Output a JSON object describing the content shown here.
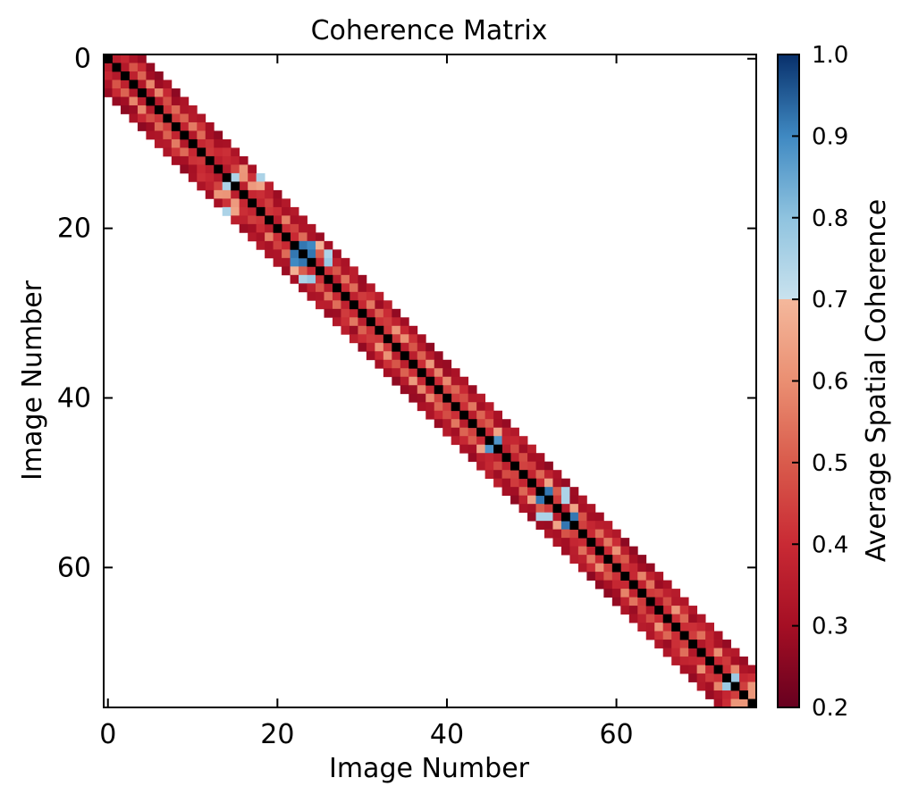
{
  "chart_data": {
    "type": "heatmap",
    "title": "Coherence Matrix",
    "xlabel": "Image Number",
    "ylabel": "Image Number",
    "matrix_size": 77,
    "xlim": [
      -0.5,
      76.5
    ],
    "ylim": [
      76.5,
      -0.5
    ],
    "x_ticks": [
      0,
      20,
      40,
      60
    ],
    "y_ticks": [
      0,
      20,
      40,
      60
    ],
    "diagonal_value": 1.0,
    "diagonal_color": "#000000",
    "band_offsets": {
      "4": 0.42,
      "3": 0.42,
      "2": 0.35,
      "1": 0.35
    },
    "default_values_by_offset": {
      "1": 0.35,
      "2": 0.48,
      "3": 0.32,
      "4": 0.28
    },
    "highlight_pairs": [
      {
        "i": 14,
        "j": 15,
        "v": 0.75
      },
      {
        "i": 14,
        "j": 18,
        "v": 0.75
      },
      {
        "i": 15,
        "j": 18,
        "v": 0.65
      },
      {
        "i": 13,
        "j": 16,
        "v": 0.62
      },
      {
        "i": 22,
        "j": 23,
        "v": 0.92
      },
      {
        "i": 23,
        "j": 24,
        "v": 0.92
      },
      {
        "i": 22,
        "j": 24,
        "v": 0.9
      },
      {
        "i": 23,
        "j": 26,
        "v": 0.75
      },
      {
        "i": 24,
        "j": 26,
        "v": 0.78
      },
      {
        "i": 22,
        "j": 25,
        "v": 0.68
      },
      {
        "i": 45,
        "j": 46,
        "v": 0.88
      },
      {
        "i": 44,
        "j": 46,
        "v": 0.65
      },
      {
        "i": 51,
        "j": 52,
        "v": 0.92
      },
      {
        "i": 50,
        "j": 52,
        "v": 0.65
      },
      {
        "i": 52,
        "j": 54,
        "v": 0.75
      },
      {
        "i": 51,
        "j": 54,
        "v": 0.75
      },
      {
        "i": 54,
        "j": 55,
        "v": 0.92
      },
      {
        "i": 53,
        "j": 55,
        "v": 0.65
      },
      {
        "i": 73,
        "j": 74,
        "v": 0.78
      },
      {
        "i": 74,
        "j": 76,
        "v": 0.62
      },
      {
        "i": 75,
        "j": 76,
        "v": 0.62
      }
    ],
    "colorbar": {
      "label": "Average Spatial Coherence",
      "min": 0.2,
      "max": 1.0,
      "ticks": [
        0.2,
        0.3,
        0.4,
        0.5,
        0.6,
        0.7,
        0.8,
        0.9,
        1.0
      ],
      "tick_labels": [
        "0.2",
        "0.3",
        "0.4",
        "0.5",
        "0.6",
        "0.7",
        "0.8",
        "0.9",
        "1.0"
      ],
      "stops": [
        {
          "v": 0.2,
          "color": "#67001f"
        },
        {
          "v": 0.3,
          "color": "#a50f24"
        },
        {
          "v": 0.4,
          "color": "#c92a34"
        },
        {
          "v": 0.5,
          "color": "#d95b4c"
        },
        {
          "v": 0.6,
          "color": "#ea8f72"
        },
        {
          "v": 0.7,
          "color": "#f4b89c"
        },
        {
          "v": 0.7001,
          "color": "#c9e2ee"
        },
        {
          "v": 0.8,
          "color": "#8fc3df"
        },
        {
          "v": 0.9,
          "color": "#3f89c2"
        },
        {
          "v": 1.0,
          "color": "#08306b"
        }
      ]
    }
  }
}
